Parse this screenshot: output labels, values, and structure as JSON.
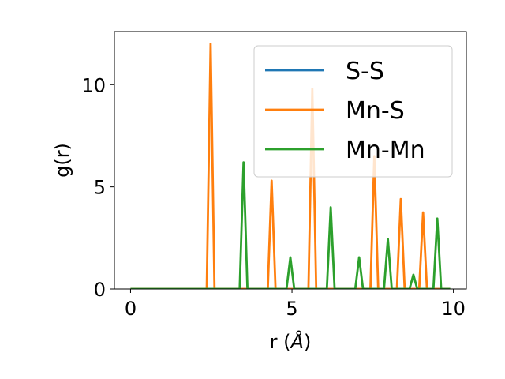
{
  "chart_data": {
    "type": "line",
    "xlabel": "r (Å)",
    "xlabel_parts": {
      "prefix": "r (",
      "symbol": "Å",
      "suffix": ")"
    },
    "ylabel": "g(r)",
    "xlim": [
      -0.5,
      10.4
    ],
    "ylim": [
      0,
      12.6
    ],
    "xticks": [
      0,
      5,
      10
    ],
    "xtick_labels": [
      "0",
      "5",
      "10"
    ],
    "yticks": [
      0,
      5,
      10
    ],
    "ytick_labels": [
      "0",
      "5",
      "10"
    ],
    "grid": false,
    "legend_position": "upper right",
    "series": [
      {
        "name": "S-S",
        "color": "#1f77b4",
        "peaks": []
      },
      {
        "name": "Mn-S",
        "color": "#ff7f0e",
        "peaks": [
          {
            "x": 2.48,
            "y": 12.0
          },
          {
            "x": 4.37,
            "y": 5.3
          },
          {
            "x": 5.63,
            "y": 9.8
          },
          {
            "x": 7.55,
            "y": 6.5
          },
          {
            "x": 8.37,
            "y": 4.4
          },
          {
            "x": 9.06,
            "y": 3.75
          }
        ]
      },
      {
        "name": "Mn-Mn",
        "color": "#2ca02c",
        "peaks": [
          {
            "x": 3.5,
            "y": 6.2
          },
          {
            "x": 4.95,
            "y": 1.55
          },
          {
            "x": 6.2,
            "y": 4.0
          },
          {
            "x": 7.08,
            "y": 1.55
          },
          {
            "x": 7.97,
            "y": 2.45
          },
          {
            "x": 8.76,
            "y": 0.7
          },
          {
            "x": 9.5,
            "y": 3.45
          }
        ]
      }
    ],
    "x_range": [
      0,
      9.9
    ],
    "peak_halfwidth": 0.12
  }
}
